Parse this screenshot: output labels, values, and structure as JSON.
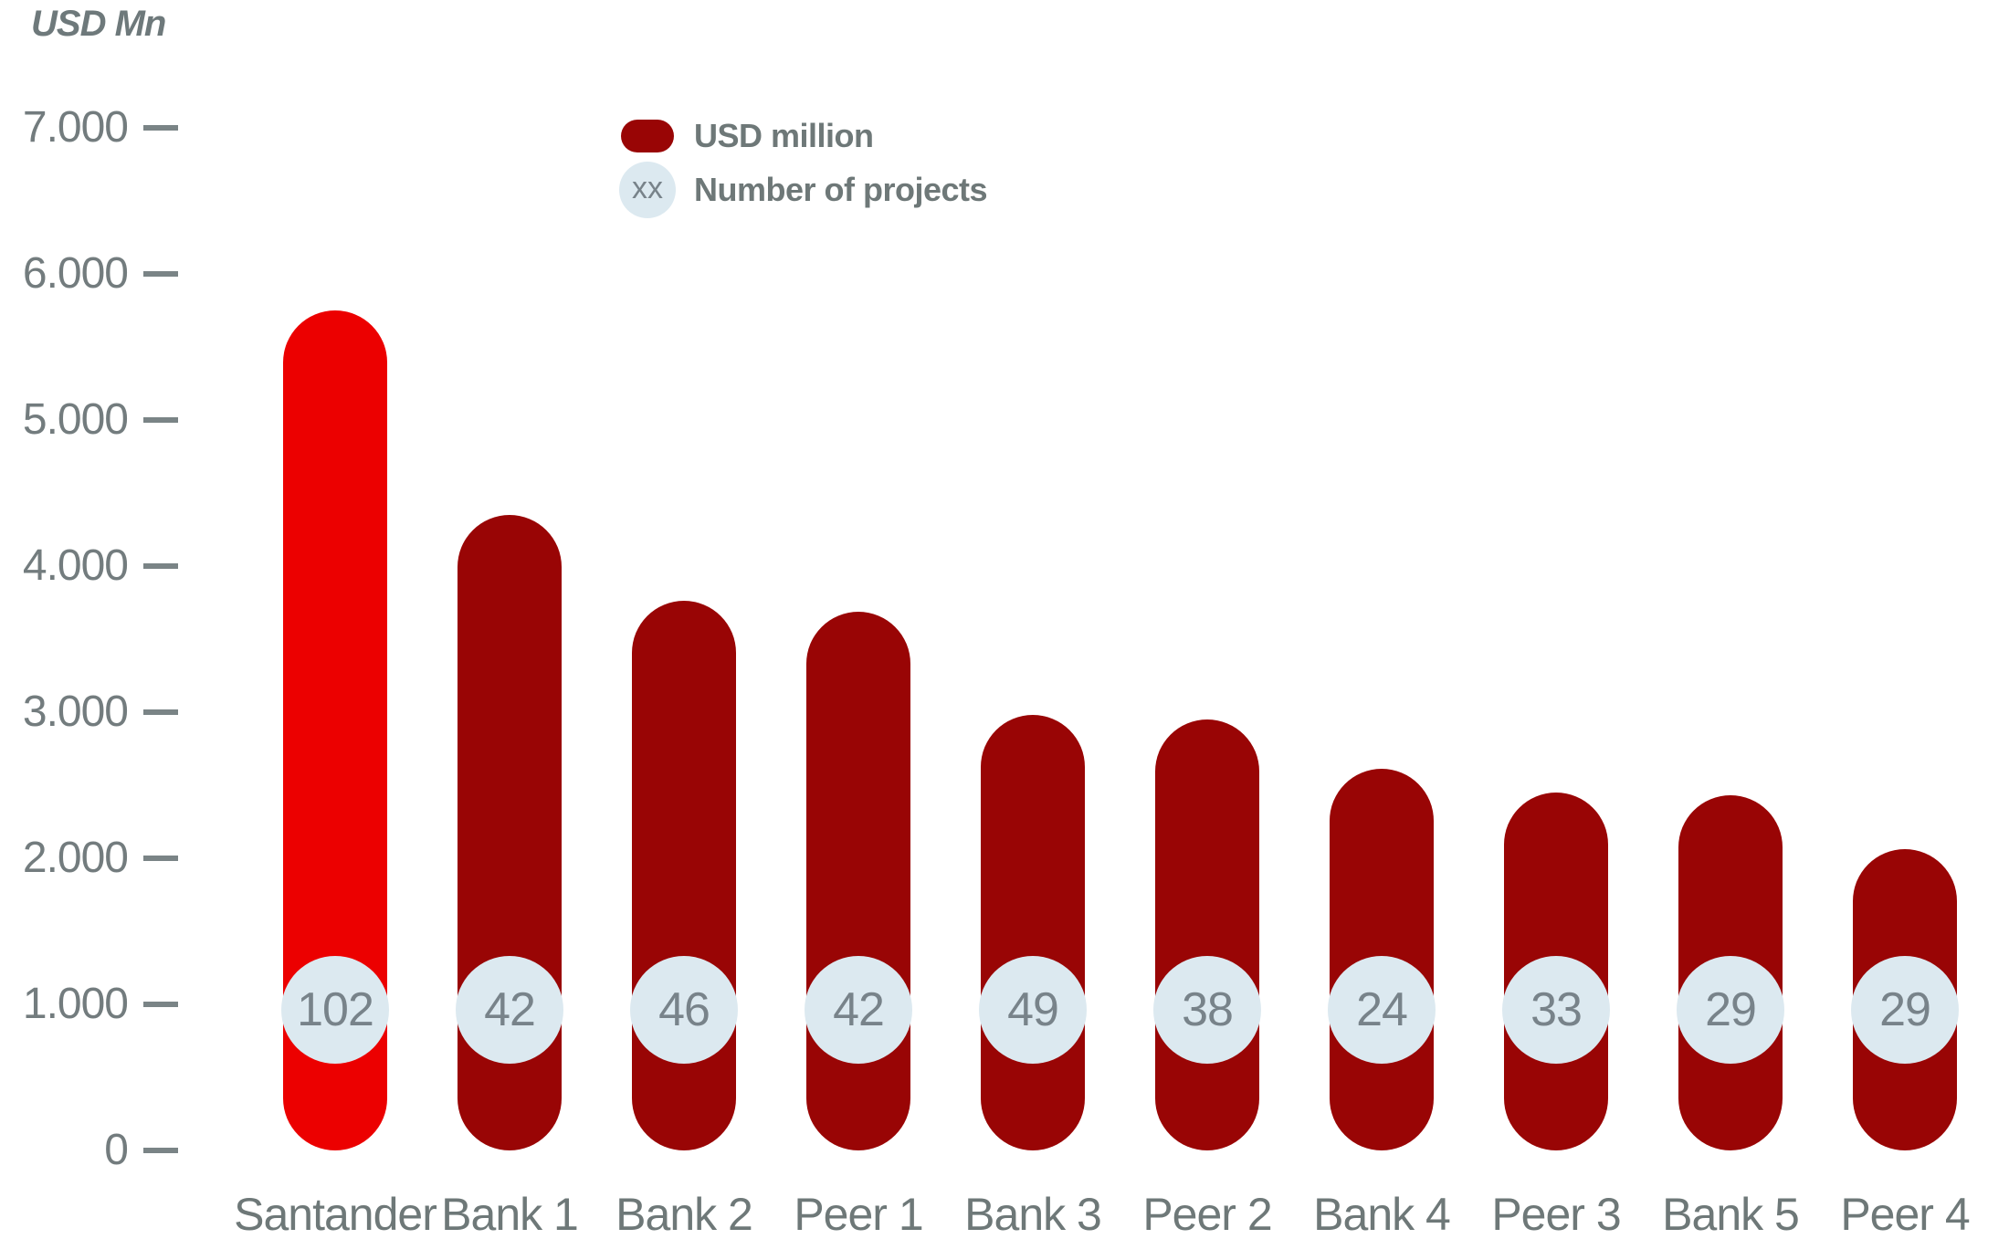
{
  "title": "USD Mn",
  "legend": {
    "usd_label": "USD million",
    "projects_label": "Number of projects",
    "projects_symbol": "xx"
  },
  "colors": {
    "highlight_red": "#EC0000",
    "dark_red": "#990505",
    "badge_blue": "#DCE9F0",
    "tick_text_gray": "#737C7E",
    "label_text_gray": "#6E7878",
    "badge_text_gray": "#78838A",
    "dash_gray": "#7A8486"
  },
  "chart_data": {
    "type": "bar",
    "title": "USD Mn",
    "ylabel": "USD Mn",
    "xlabel": "",
    "ylim": [
      0,
      7000
    ],
    "grid": false,
    "legend_position": "top-center",
    "bar_shape": "fully-rounded-pill",
    "highlight_index": 0,
    "categories": [
      "Santander",
      "Bank 1",
      "Bank 2",
      "Peer 1",
      "Bank 3",
      "Peer 2",
      "Bank 4",
      "Peer 3",
      "Bank 5",
      "Peer 4"
    ],
    "series": [
      {
        "name": "USD million",
        "values": [
          5750,
          4350,
          3760,
          3690,
          2980,
          2950,
          2610,
          2450,
          2430,
          2060
        ]
      },
      {
        "name": "Number of projects",
        "values": [
          102,
          42,
          46,
          42,
          49,
          38,
          24,
          33,
          29,
          29
        ]
      }
    ],
    "y_ticks": [
      {
        "label": "7.000",
        "value": 7000
      },
      {
        "label": "6.000",
        "value": 6000
      },
      {
        "label": "5.000",
        "value": 5000
      },
      {
        "label": "4.000",
        "value": 4000
      },
      {
        "label": "3.000",
        "value": 3000
      },
      {
        "label": "2.000",
        "value": 2000
      },
      {
        "label": "1.000",
        "value": 1000
      },
      {
        "label": "0",
        "value": 0
      }
    ]
  }
}
